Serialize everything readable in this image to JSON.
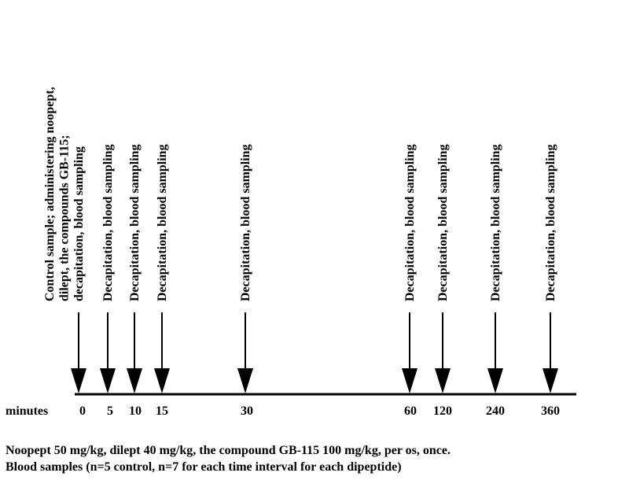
{
  "axis": {
    "unit_label": "minutes"
  },
  "events": [
    {
      "time": "0",
      "label_lines": [
        "Control sample; administering noopept,",
        "dilept, the compounds GB-115;",
        "decapitation, blood sampling"
      ]
    },
    {
      "time": "5",
      "label_lines": [
        "Decapitation, blood sampling"
      ]
    },
    {
      "time": "10",
      "label_lines": [
        "Decapitation, blood sampling"
      ]
    },
    {
      "time": "15",
      "label_lines": [
        "Decapitation, blood sampling"
      ]
    },
    {
      "time": "30",
      "label_lines": [
        "Decapitation, blood sampling"
      ]
    },
    {
      "time": "60",
      "label_lines": [
        "Decapitation, blood sampling"
      ]
    },
    {
      "time": "120",
      "label_lines": [
        "Decapitation, blood sampling"
      ]
    },
    {
      "time": "240",
      "label_lines": [
        "Decapitation, blood sampling"
      ]
    },
    {
      "time": "360",
      "label_lines": [
        "Decapitation, blood sampling"
      ]
    }
  ],
  "footer": {
    "line1": "Noopept 50 mg/kg, dilept 40 mg/kg, the compound GB-115 100 mg/kg, per os, once.",
    "line2": "Blood samples (n=5 control, n=7 for each time interval for each dipeptide)"
  },
  "colors": {
    "ink": "#000000",
    "background": "#ffffff"
  }
}
